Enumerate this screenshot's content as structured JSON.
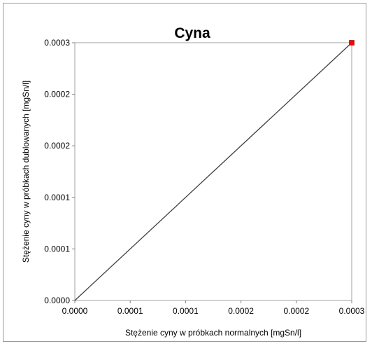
{
  "chart_data": {
    "type": "scatter",
    "title": "Cyna",
    "xlabel": "Stężenie cyny w próbkach normalnych [mgSn/l]",
    "ylabel": "Stężenie cyny  w próbkach dublowanych  [mgSn/l]",
    "xlim": [
      0,
      0.0003
    ],
    "ylim": [
      0,
      0.0003
    ],
    "x_tick_labels": [
      "0.0000",
      "0.0001",
      "0.0001",
      "0.0002",
      "0.0002",
      "0.0003"
    ],
    "y_tick_labels": [
      "0.0000",
      "0.0001",
      "0.0001",
      "0.0002",
      "0.0002",
      "0.0003"
    ],
    "series": [
      {
        "values": [
          [
            0.0003,
            0.0003
          ]
        ],
        "color": "#ff0000"
      }
    ],
    "reference_line": {
      "from": [
        0,
        0
      ],
      "to": [
        0.0003,
        0.0003
      ],
      "color": "#404040"
    },
    "grid": false
  }
}
